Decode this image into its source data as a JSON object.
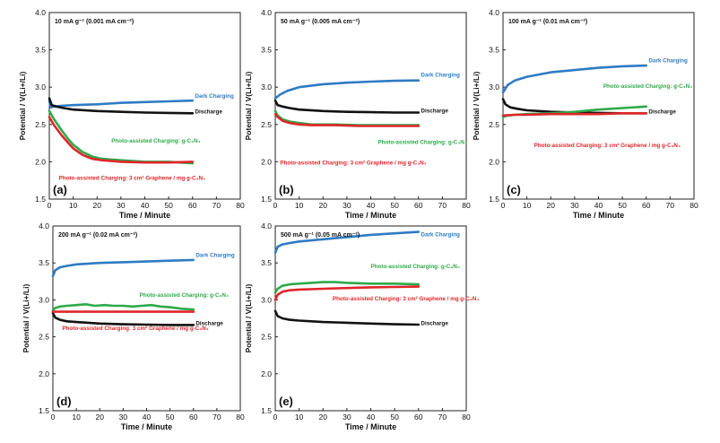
{
  "colors": {
    "dark": "#2E7BC4",
    "discharge": "#111111",
    "green": "#2DAA4A",
    "red": "#E0262A",
    "axis": "#222222",
    "text": "#111111"
  },
  "chart_data": [
    {
      "type": "line",
      "panel_label": "(a)",
      "title": "10 mA g⁻¹ (0.001 mA cm⁻²)",
      "xlabel": "Time / Minute",
      "ylabel": "Potential / V(Li+/Li)",
      "xlim": [
        0,
        80
      ],
      "ylim": [
        1.5,
        4.0
      ],
      "xticks": [
        "0",
        "10",
        "20",
        "30",
        "40",
        "50",
        "60",
        "70",
        "80"
      ],
      "yticks": [
        "1.5",
        "2.0",
        "2.5",
        "3.0",
        "3.5",
        "4.0"
      ],
      "series": [
        {
          "name": "Dark Charging",
          "color_key": "dark",
          "x": [
            0,
            0.5,
            2,
            5,
            10,
            20,
            30,
            40,
            50,
            60
          ],
          "y": [
            2.82,
            2.73,
            2.74,
            2.75,
            2.76,
            2.77,
            2.79,
            2.8,
            2.81,
            2.82
          ]
        },
        {
          "name": "Discharge",
          "color_key": "discharge",
          "x": [
            0,
            1,
            3,
            6,
            10,
            20,
            30,
            40,
            50,
            60
          ],
          "y": [
            2.85,
            2.76,
            2.74,
            2.72,
            2.7,
            2.68,
            2.67,
            2.66,
            2.655,
            2.65
          ]
        },
        {
          "name": "Photo-assisted Charging: g-C3N4",
          "color_key": "green",
          "x": [
            0,
            2,
            5,
            8,
            10,
            14,
            18,
            22,
            30,
            40,
            50,
            60
          ],
          "y": [
            2.68,
            2.57,
            2.43,
            2.3,
            2.23,
            2.13,
            2.07,
            2.04,
            2.02,
            2.0,
            2.0,
            1.98
          ]
        },
        {
          "name": "Photo-assisted Charging: 3 cm² Graphene / mg g-C3N4",
          "color_key": "red",
          "x": [
            0,
            2,
            5,
            8,
            10,
            14,
            18,
            22,
            30,
            40,
            50,
            60
          ],
          "y": [
            2.6,
            2.49,
            2.36,
            2.25,
            2.18,
            2.09,
            2.04,
            2.02,
            2.0,
            1.99,
            1.99,
            2.0
          ]
        }
      ],
      "annotations": [
        {
          "text": "Dark Charging",
          "color_key": "dark",
          "at": [
            61,
            2.86
          ]
        },
        {
          "text": "Discharge",
          "color_key": "discharge",
          "at": [
            61,
            2.65
          ]
        },
        {
          "text": "Photo-assisted Charging: g-C₃N₄",
          "color_key": "green",
          "at": [
            26,
            2.26
          ]
        },
        {
          "text": "Photo-assisted Charging: 3 cm² Graphene / mg g-C₃N₄",
          "color_key": "red",
          "at": [
            4,
            1.76
          ]
        }
      ]
    },
    {
      "type": "line",
      "panel_label": "(b)",
      "title": "50 mA g⁻¹ (0.005 mA cm⁻²)",
      "xlabel": "Time / Minute",
      "ylabel": "Potential / V(Li+/Li)",
      "xlim": [
        0,
        80
      ],
      "ylim": [
        1.5,
        4.0
      ],
      "xticks": [
        "0",
        "10",
        "20",
        "30",
        "40",
        "50",
        "60",
        "70",
        "80"
      ],
      "yticks": [
        "1.5",
        "2.0",
        "2.5",
        "3.0",
        "3.5",
        "4.0"
      ],
      "series": [
        {
          "name": "Dark Charging",
          "color_key": "dark",
          "x": [
            0,
            2,
            5,
            10,
            20,
            30,
            40,
            50,
            60
          ],
          "y": [
            2.85,
            2.9,
            2.95,
            3.0,
            3.04,
            3.06,
            3.075,
            3.085,
            3.09
          ]
        },
        {
          "name": "Discharge",
          "color_key": "discharge",
          "x": [
            0,
            1,
            3,
            6,
            10,
            20,
            30,
            40,
            50,
            60
          ],
          "y": [
            2.82,
            2.76,
            2.74,
            2.72,
            2.7,
            2.68,
            2.67,
            2.665,
            2.66,
            2.66
          ]
        },
        {
          "name": "Photo-assisted Charging: g-C3N4",
          "color_key": "green",
          "x": [
            0,
            1,
            3,
            6,
            10,
            15,
            25,
            35,
            45,
            60
          ],
          "y": [
            2.68,
            2.62,
            2.57,
            2.54,
            2.52,
            2.5,
            2.5,
            2.49,
            2.49,
            2.49
          ]
        },
        {
          "name": "Photo-assisted Charging: 3 cm² Graphene / mg g-C3N4",
          "color_key": "red",
          "x": [
            0,
            1,
            3,
            6,
            10,
            15,
            25,
            35,
            45,
            60
          ],
          "y": [
            2.64,
            2.6,
            2.55,
            2.52,
            2.5,
            2.49,
            2.49,
            2.48,
            2.48,
            2.48
          ]
        }
      ],
      "annotations": [
        {
          "text": "Dark Charging",
          "color_key": "dark",
          "at": [
            61,
            3.14
          ]
        },
        {
          "text": "Discharge",
          "color_key": "discharge",
          "at": [
            61,
            2.66
          ]
        },
        {
          "text": "Photo-assisted Charging: g-C₃N₄",
          "color_key": "green",
          "at": [
            43,
            2.24
          ]
        },
        {
          "text": "Photo-assisted Charging: 3 cm² Graphene / mg g-C₃N₄",
          "color_key": "red",
          "at": [
            2,
            1.96
          ]
        }
      ]
    },
    {
      "type": "line",
      "panel_label": "(c)",
      "title": "100 mA g⁻¹ (0.01 mA cm⁻²)",
      "xlabel": "Time / Minute",
      "ylabel": "Potential / V(Li+/Li)",
      "xlim": [
        0,
        80
      ],
      "ylim": [
        1.5,
        4.0
      ],
      "xticks": [
        "0",
        "10",
        "20",
        "30",
        "40",
        "50",
        "60",
        "70",
        "80"
      ],
      "yticks": [
        "1.5",
        "2.0",
        "2.5",
        "3.0",
        "3.5",
        "4.0"
      ],
      "series": [
        {
          "name": "Dark Charging",
          "color_key": "dark",
          "x": [
            0,
            2,
            5,
            10,
            20,
            30,
            40,
            50,
            60
          ],
          "y": [
            2.93,
            3.03,
            3.09,
            3.14,
            3.2,
            3.23,
            3.26,
            3.28,
            3.29
          ]
        },
        {
          "name": "Discharge",
          "color_key": "discharge",
          "x": [
            0,
            1,
            3,
            6,
            10,
            20,
            30,
            40,
            50,
            60
          ],
          "y": [
            2.84,
            2.77,
            2.73,
            2.71,
            2.69,
            2.67,
            2.66,
            2.655,
            2.65,
            2.65
          ]
        },
        {
          "name": "Photo-assisted Charging: g-C3N4",
          "color_key": "green",
          "x": [
            0,
            2,
            5,
            10,
            20,
            30,
            40,
            50,
            60
          ],
          "y": [
            2.6,
            2.62,
            2.63,
            2.64,
            2.65,
            2.67,
            2.7,
            2.72,
            2.74
          ]
        },
        {
          "name": "Photo-assisted Charging: 3 cm² Graphene / mg g-C3N4",
          "color_key": "red",
          "x": [
            0,
            5,
            10,
            20,
            30,
            40,
            50,
            60
          ],
          "y": [
            2.62,
            2.63,
            2.63,
            2.64,
            2.64,
            2.64,
            2.65,
            2.65
          ]
        }
      ],
      "annotations": [
        {
          "text": "Dark Charging",
          "color_key": "dark",
          "at": [
            61,
            3.33
          ]
        },
        {
          "text": "Photo-assisted Charging: g-C₃N₄",
          "color_key": "green",
          "at": [
            42,
            2.99
          ]
        },
        {
          "text": "Discharge",
          "color_key": "discharge",
          "at": [
            61,
            2.65
          ]
        },
        {
          "text": "Photo-assisted Charging: 3 cm² Graphene / mg g-C₃N₄",
          "color_key": "red",
          "at": [
            13,
            2.2
          ]
        }
      ]
    },
    {
      "type": "line",
      "panel_label": "(d)",
      "title": "200 mA g⁻¹ (0.02 mA cm⁻²)",
      "xlabel": "Time / Minute",
      "ylabel": "Potential / V(Li+/Li)",
      "xlim": [
        0,
        80
      ],
      "ylim": [
        1.5,
        4.0
      ],
      "xticks": [
        "0",
        "10",
        "20",
        "30",
        "40",
        "50",
        "60",
        "70",
        "80"
      ],
      "yticks": [
        "1.5",
        "2.0",
        "2.5",
        "3.0",
        "3.5",
        "4.0"
      ],
      "series": [
        {
          "name": "Dark Charging",
          "color_key": "dark",
          "x": [
            0,
            1,
            3,
            6,
            10,
            20,
            30,
            40,
            50,
            60
          ],
          "y": [
            3.32,
            3.4,
            3.44,
            3.46,
            3.48,
            3.5,
            3.51,
            3.52,
            3.53,
            3.54
          ]
        },
        {
          "name": "Discharge",
          "color_key": "discharge",
          "x": [
            0,
            1,
            3,
            6,
            10,
            20,
            30,
            40,
            50,
            60
          ],
          "y": [
            2.82,
            2.76,
            2.73,
            2.71,
            2.7,
            2.68,
            2.67,
            2.665,
            2.66,
            2.66
          ]
        },
        {
          "name": "Photo-assisted Charging: g-C3N4",
          "color_key": "green",
          "x": [
            0,
            1,
            3,
            6,
            10,
            14,
            18,
            22,
            26,
            30,
            34,
            38,
            42,
            46,
            50,
            55,
            60
          ],
          "y": [
            2.86,
            2.89,
            2.91,
            2.92,
            2.93,
            2.94,
            2.92,
            2.93,
            2.92,
            2.92,
            2.91,
            2.92,
            2.93,
            2.91,
            2.9,
            2.88,
            2.87
          ]
        },
        {
          "name": "Photo-assisted Charging: 3 cm² Graphene / mg g-C3N4",
          "color_key": "red",
          "x": [
            0,
            2,
            5,
            10,
            20,
            30,
            40,
            50,
            60
          ],
          "y": [
            2.84,
            2.84,
            2.84,
            2.84,
            2.84,
            2.84,
            2.84,
            2.84,
            2.84
          ]
        }
      ],
      "annotations": [
        {
          "text": "Dark Charging",
          "color_key": "dark",
          "at": [
            61,
            3.58
          ]
        },
        {
          "text": "Photo-assisted Charging: g-C₃N₄",
          "color_key": "green",
          "at": [
            37,
            3.04
          ]
        },
        {
          "text": "Discharge",
          "color_key": "discharge",
          "at": [
            61,
            2.66
          ]
        },
        {
          "text": "Photo-assisted Charging: 3 cm² Graphene / mg g-C₃N₄",
          "color_key": "red",
          "at": [
            4,
            2.59
          ]
        }
      ]
    },
    {
      "type": "line",
      "panel_label": "(e)",
      "title": "500 mA g⁻¹ (0.05 mA cm⁻²)",
      "xlabel": "Time / Minute",
      "ylabel": "Potential / V(Li+/Li)",
      "xlim": [
        0,
        80
      ],
      "ylim": [
        1.5,
        4.0
      ],
      "xticks": [
        "0",
        "10",
        "20",
        "30",
        "40",
        "50",
        "60",
        "70",
        "80"
      ],
      "yticks": [
        "1.5",
        "2.0",
        "2.5",
        "3.0",
        "3.5",
        "4.0"
      ],
      "series": [
        {
          "name": "Dark Charging",
          "color_key": "dark",
          "x": [
            0,
            1,
            3,
            6,
            10,
            20,
            30,
            40,
            50,
            60
          ],
          "y": [
            3.64,
            3.72,
            3.75,
            3.77,
            3.79,
            3.82,
            3.85,
            3.88,
            3.9,
            3.92
          ]
        },
        {
          "name": "Photo-assisted Charging: g-C3N4",
          "color_key": "green",
          "x": [
            0,
            1,
            3,
            6,
            10,
            15,
            20,
            25,
            30,
            40,
            50,
            60
          ],
          "y": [
            3.1,
            3.15,
            3.19,
            3.21,
            3.22,
            3.23,
            3.24,
            3.24,
            3.23,
            3.22,
            3.22,
            3.21
          ]
        },
        {
          "name": "Photo-assisted Charging: 3 cm² Graphene / mg g-C3N4",
          "color_key": "red",
          "x": [
            0,
            1,
            3,
            6,
            10,
            20,
            30,
            40,
            50,
            60
          ],
          "y": [
            3.0,
            3.07,
            3.11,
            3.13,
            3.14,
            3.15,
            3.16,
            3.17,
            3.175,
            3.18
          ]
        },
        {
          "name": "Discharge",
          "color_key": "discharge",
          "x": [
            0,
            1,
            3,
            6,
            10,
            20,
            30,
            40,
            50,
            60
          ],
          "y": [
            2.85,
            2.78,
            2.75,
            2.73,
            2.72,
            2.7,
            2.69,
            2.68,
            2.67,
            2.665
          ]
        }
      ],
      "annotations": [
        {
          "text": "Dark Charging",
          "color_key": "dark",
          "at": [
            61,
            3.86
          ]
        },
        {
          "text": "Photo-assisted Charging: g-C₃N₄",
          "color_key": "green",
          "at": [
            40,
            3.43
          ]
        },
        {
          "text": "Photo-assisted Charging: 3 cm² Graphene / mg g-C₃N₄",
          "color_key": "red",
          "at": [
            24,
            2.99
          ]
        },
        {
          "text": "Discharge",
          "color_key": "discharge",
          "at": [
            61,
            2.66
          ]
        }
      ]
    }
  ]
}
